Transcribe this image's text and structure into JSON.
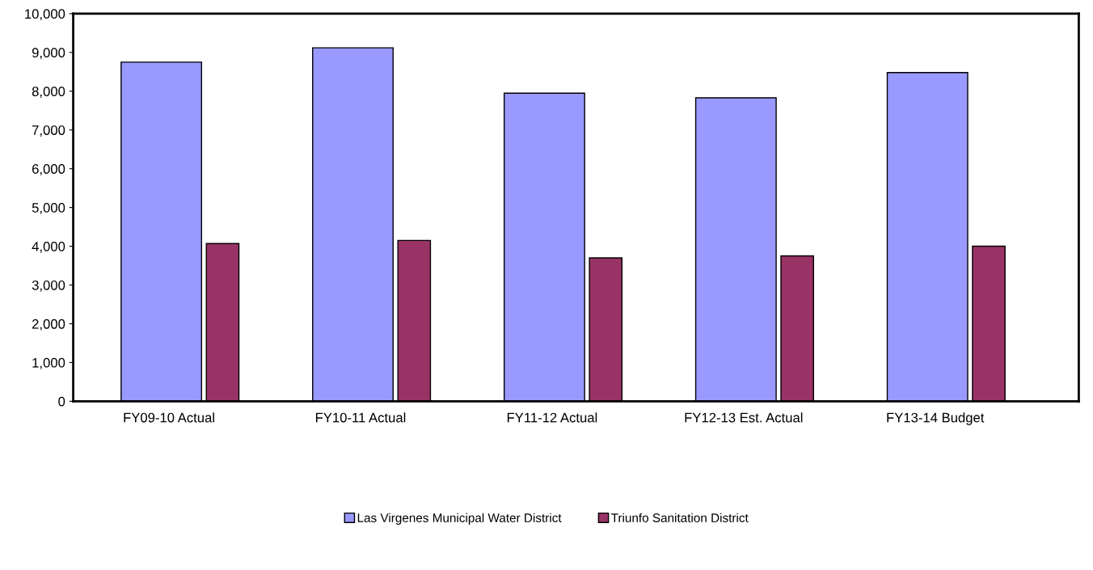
{
  "chart_data": {
    "type": "bar",
    "categories": [
      "FY09-10 Actual",
      "FY10-11 Actual",
      "FY11-12 Actual",
      "FY12-13 Est. Actual",
      "FY13-14 Budget"
    ],
    "series": [
      {
        "name": "Las Virgenes Municipal Water District",
        "color": "#9999ff",
        "values": [
          8750,
          9120,
          7950,
          7830,
          8480
        ]
      },
      {
        "name": "Triunfo Sanitation District",
        "color": "#993366",
        "values": [
          4070,
          4150,
          3700,
          3750,
          4000
        ]
      }
    ],
    "ylim": [
      0,
      10000
    ],
    "yticks": [
      {
        "value": 0,
        "label": "0"
      },
      {
        "value": 1000,
        "label": "1,000"
      },
      {
        "value": 2000,
        "label": "2,000"
      },
      {
        "value": 3000,
        "label": "3,000"
      },
      {
        "value": 4000,
        "label": "4,000"
      },
      {
        "value": 5000,
        "label": "5,000"
      },
      {
        "value": 6000,
        "label": "6,000"
      },
      {
        "value": 7000,
        "label": "7,000"
      },
      {
        "value": 8000,
        "label": "8,000"
      },
      {
        "value": 9000,
        "label": "9,000"
      },
      {
        "value": 10000,
        "label": "10,000"
      }
    ],
    "grid": false,
    "legend": "bottom"
  }
}
